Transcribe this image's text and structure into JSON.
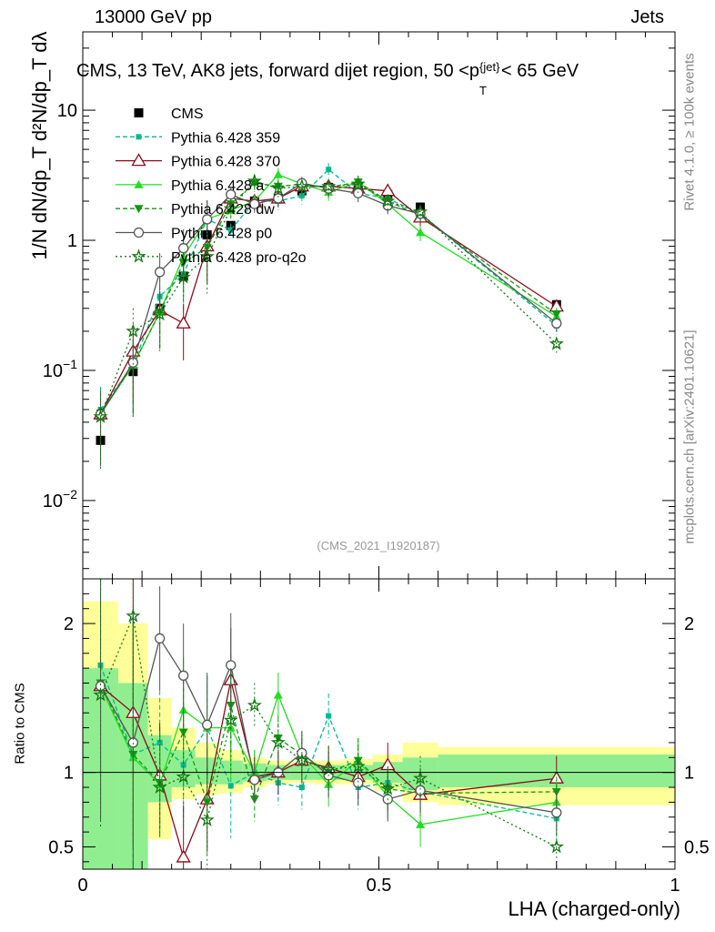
{
  "header": {
    "left": "13000 GeV pp",
    "right": "Jets"
  },
  "title": "CMS, 13 TeV, AK8 jets, forward dijet region, 50 <p_T^{jet}< 65 GeV",
  "title_display": "CMS, 13 TeV, AK8 jets, forward dijet region, 50 <p",
  "title_tail": "< 65 GeV",
  "title_sup": "{jet}",
  "title_sub": "T",
  "analysis_id": "(CMS_2021_I1920187)",
  "side_rivet": "Rivet 4.1.0, ≥ 100k events",
  "side_mcplots": "mcplots.cern.ch [arXiv:2401.10621]",
  "ylabel_main": "1/N dN/dp_T d²N/dp_T dλ",
  "ylabel_ratio": "Ratio to CMS",
  "xlabel": "LHA (charged-only)",
  "colors": {
    "band_inner": "#90ee90",
    "band_outer": "#ffff99"
  },
  "chart_data": [
    {
      "type": "line",
      "panel": "main",
      "yscale": "log",
      "xlim": [
        0,
        1
      ],
      "ylim": [
        0.0025,
        40
      ],
      "yticks": [
        {
          "v": 0.01,
          "label": "10^-2"
        },
        {
          "v": 0.1,
          "label": "10^-1"
        },
        {
          "v": 1,
          "label": "1"
        },
        {
          "v": 10,
          "label": "10"
        }
      ],
      "x": [
        0.03,
        0.085,
        0.13,
        0.17,
        0.21,
        0.25,
        0.29,
        0.33,
        0.37,
        0.415,
        0.465,
        0.515,
        0.57,
        0.8
      ],
      "series": [
        {
          "name": "CMS",
          "color": "#000000",
          "marker": "square",
          "dash": "",
          "values": [
            0.029,
            0.098,
            0.3,
            0.53,
            1.1,
            1.3,
            2.0,
            2.1,
            2.4,
            2.55,
            2.6,
            2.25,
            1.8,
            0.32
          ]
        },
        {
          "name": "Pythia 6.428 359",
          "color": "#00b890",
          "marker": "smallsquare",
          "dash": "5,3",
          "values": [
            0.05,
            0.11,
            0.37,
            0.55,
            1.45,
            1.2,
            2.0,
            2.0,
            2.2,
            3.5,
            2.3,
            2.1,
            1.6,
            0.22
          ]
        },
        {
          "name": "Pythia 6.428 370",
          "color": "#8b0a1a",
          "marker": "opentriangle",
          "dash": "",
          "values": [
            0.046,
            0.14,
            0.29,
            0.23,
            0.9,
            2.1,
            2.0,
            2.1,
            2.6,
            2.6,
            2.5,
            2.4,
            1.5,
            0.31
          ]
        },
        {
          "name": "Pythia 6.428 a",
          "color": "#22dd22",
          "marker": "triangle",
          "dash": "",
          "values": [
            0.046,
            0.11,
            0.28,
            0.75,
            1.45,
            1.7,
            2.0,
            3.2,
            2.7,
            2.35,
            2.8,
            1.9,
            1.15,
            0.26
          ]
        },
        {
          "name": "Pythia 6.428 dw",
          "color": "#119911",
          "marker": "invtriangle",
          "dash": "5,3",
          "values": [
            0.047,
            0.11,
            0.28,
            0.67,
            0.88,
            1.9,
            2.75,
            2.6,
            2.7,
            2.55,
            2.8,
            2.0,
            1.55,
            0.27
          ]
        },
        {
          "name": "Pythia 6.428 p0",
          "color": "#555555",
          "marker": "opencircle",
          "dash": "",
          "values": [
            0.046,
            0.115,
            0.57,
            0.87,
            1.45,
            2.25,
            1.9,
            2.1,
            2.75,
            2.5,
            2.3,
            1.85,
            1.6,
            0.23
          ]
        },
        {
          "name": "Pythia 6.428 pro-q2o",
          "color": "#117711",
          "marker": "star",
          "dash": "2,3",
          "values": [
            0.044,
            0.2,
            0.27,
            0.52,
            0.75,
            1.75,
            2.85,
            2.5,
            2.6,
            2.6,
            2.7,
            2.0,
            1.65,
            0.16
          ]
        }
      ]
    },
    {
      "type": "line",
      "panel": "ratio",
      "xlim": [
        0,
        1
      ],
      "ylim": [
        0.35,
        2.3
      ],
      "yticks": [
        {
          "v": 0.5,
          "label": "0.5"
        },
        {
          "v": 1,
          "label": "1"
        },
        {
          "v": 2,
          "label": "2"
        }
      ],
      "xticks": [
        {
          "v": 0,
          "label": "0"
        },
        {
          "v": 0.5,
          "label": "0.5"
        },
        {
          "v": 1,
          "label": "1"
        }
      ],
      "bands": [
        {
          "x0": 0.0,
          "x1": 0.06,
          "inner": [
            0.0,
            1.7
          ],
          "outer": [
            0.0,
            2.15
          ]
        },
        {
          "x0": 0.06,
          "x1": 0.11,
          "inner": [
            0.0,
            1.6
          ],
          "outer": [
            0.0,
            2.0
          ]
        },
        {
          "x0": 0.11,
          "x1": 0.15,
          "inner": [
            0.8,
            1.25
          ],
          "outer": [
            0.55,
            1.5
          ]
        },
        {
          "x0": 0.15,
          "x1": 0.19,
          "inner": [
            0.9,
            1.15
          ],
          "outer": [
            0.82,
            1.3
          ]
        },
        {
          "x0": 0.19,
          "x1": 0.23,
          "inner": [
            0.92,
            1.1
          ],
          "outer": [
            0.85,
            1.2
          ]
        },
        {
          "x0": 0.23,
          "x1": 0.27,
          "inner": [
            0.92,
            1.08
          ],
          "outer": [
            0.86,
            1.15
          ]
        },
        {
          "x0": 0.27,
          "x1": 0.31,
          "inner": [
            0.94,
            1.06
          ],
          "outer": [
            0.9,
            1.1
          ]
        },
        {
          "x0": 0.31,
          "x1": 0.35,
          "inner": [
            0.95,
            1.05
          ],
          "outer": [
            0.92,
            1.08
          ]
        },
        {
          "x0": 0.35,
          "x1": 0.39,
          "inner": [
            0.95,
            1.05
          ],
          "outer": [
            0.93,
            1.07
          ]
        },
        {
          "x0": 0.39,
          "x1": 0.44,
          "inner": [
            0.95,
            1.05
          ],
          "outer": [
            0.92,
            1.08
          ]
        },
        {
          "x0": 0.44,
          "x1": 0.49,
          "inner": [
            0.95,
            1.05
          ],
          "outer": [
            0.92,
            1.09
          ]
        },
        {
          "x0": 0.49,
          "x1": 0.54,
          "inner": [
            0.93,
            1.07
          ],
          "outer": [
            0.88,
            1.12
          ]
        },
        {
          "x0": 0.54,
          "x1": 0.6,
          "inner": [
            0.88,
            1.1
          ],
          "outer": [
            0.8,
            1.2
          ]
        },
        {
          "x0": 0.6,
          "x1": 1.0,
          "inner": [
            0.9,
            1.12
          ],
          "outer": [
            0.78,
            1.17
          ]
        }
      ],
      "series": [
        {
          "name": "Pythia 6.428 359",
          "values": [
            1.72,
            1.12,
            1.2,
            1.05,
            1.3,
            0.91,
            1.0,
            0.93,
            0.9,
            1.38,
            0.9,
            0.93,
            0.87,
            0.69
          ]
        },
        {
          "name": "Pythia 6.428 370",
          "values": [
            1.58,
            1.4,
            0.98,
            0.43,
            0.82,
            1.62,
            0.97,
            1.0,
            1.08,
            1.03,
            0.97,
            1.05,
            0.85,
            0.96
          ]
        },
        {
          "name": "Pythia 6.428 a",
          "values": [
            1.58,
            1.1,
            0.92,
            1.42,
            1.3,
            1.3,
            1.0,
            1.52,
            1.12,
            0.92,
            1.08,
            0.84,
            0.65,
            0.8
          ]
        },
        {
          "name": "Pythia 6.428 dw",
          "values": [
            1.6,
            1.12,
            0.93,
            1.27,
            0.8,
            1.45,
            0.82,
            1.23,
            1.12,
            1.0,
            1.08,
            0.89,
            0.86,
            0.87
          ]
        },
        {
          "name": "Pythia 6.428 p0",
          "values": [
            1.58,
            1.2,
            1.9,
            1.65,
            1.32,
            1.72,
            0.95,
            1.0,
            1.13,
            0.98,
            0.93,
            0.82,
            0.88,
            0.73
          ]
        },
        {
          "name": "Pythia 6.428 pro-q2o",
          "values": [
            1.52,
            2.05,
            0.9,
            0.97,
            0.68,
            1.35,
            1.45,
            1.2,
            1.08,
            1.02,
            1.04,
            0.89,
            0.96,
            0.5
          ]
        }
      ]
    }
  ]
}
